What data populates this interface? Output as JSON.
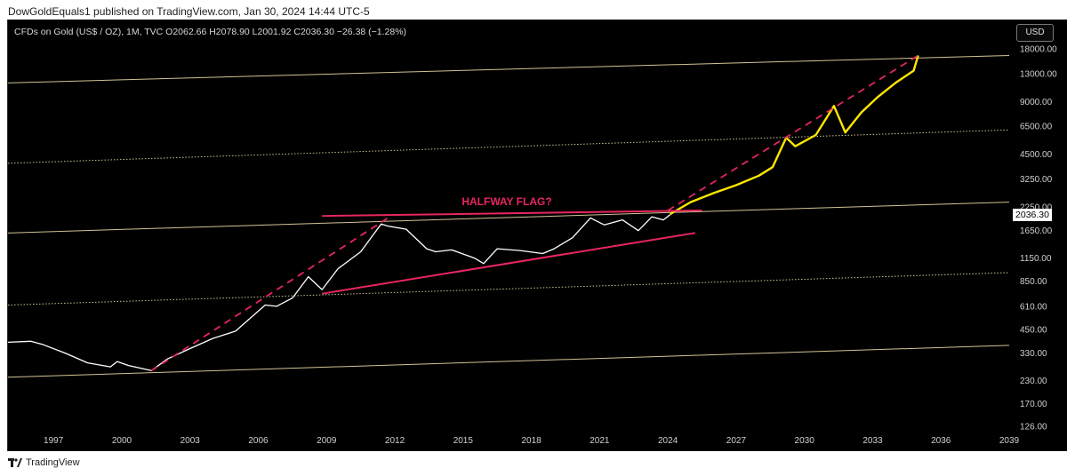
{
  "header": {
    "text": "DowGoldEquals1 published on TradingView.com, Jan 30, 2024 14:44 UTC-5"
  },
  "legend": {
    "text": "CFDs on Gold (US$ / OZ), 1M, TVC  O2062.66  H2078.90  L2001.92  C2036.30  −26.38 (−1.28%)"
  },
  "currency_button": "USD",
  "last_price_badge": "2036.30",
  "annotation": "HALFWAY FLAG?",
  "footer": {
    "logo_text": "TradingView"
  },
  "colors": {
    "background": "#000000",
    "price_line": "#ffffff",
    "projection": "#ffe600",
    "trendline": "#e8265f",
    "channel": "#f5e6b0",
    "axis_text": "#d0d0d0"
  },
  "chart_data": {
    "type": "line",
    "title": "CFDs on Gold (US$ / OZ), 1M, TVC",
    "y_scale": "log",
    "x_ticks": [
      "1997",
      "2000",
      "2003",
      "2006",
      "2009",
      "2012",
      "2015",
      "2018",
      "2021",
      "2024",
      "2027",
      "2030",
      "2033",
      "2036",
      "2039"
    ],
    "y_ticks": [
      "18000.00",
      "13000.00",
      "9000.00",
      "6500.00",
      "4500.00",
      "3250.00",
      "2250.00",
      "1650.00",
      "1150.00",
      "850.00",
      "610.00",
      "450.00",
      "330.00",
      "230.00",
      "170.00",
      "126.00"
    ],
    "xlim": [
      1995,
      2039
    ],
    "ylim": [
      120,
      22000
    ],
    "series": [
      {
        "style": "price",
        "x": [
          1995.0,
          1996.0,
          1996.5,
          1997.5,
          1998.5,
          1999.5,
          1999.8,
          2000.3,
          2001.3,
          2002.0,
          2003.0,
          2004.0,
          2005.0,
          2006.3,
          2006.8,
          2007.5,
          2008.2,
          2008.8,
          2009.5,
          2010.5,
          2011.4,
          2011.7,
          2012.5,
          2013.4,
          2013.8,
          2014.5,
          2015.5,
          2015.9,
          2016.5,
          2017.5,
          2018.5,
          2019.0,
          2019.8,
          2020.6,
          2021.2,
          2022.0,
          2022.7,
          2023.3,
          2023.8,
          2024.1
        ],
        "y": [
          380,
          385,
          370,
          330,
          290,
          275,
          295,
          280,
          262,
          305,
          350,
          400,
          440,
          620,
          610,
          680,
          900,
          760,
          1000,
          1250,
          1800,
          1750,
          1680,
          1300,
          1250,
          1280,
          1150,
          1070,
          1300,
          1270,
          1220,
          1300,
          1500,
          1950,
          1780,
          1900,
          1650,
          1980,
          1900,
          2036
        ]
      },
      {
        "style": "projection",
        "x": [
          2024.1,
          2025.0,
          2026.0,
          2027.0,
          2028.0,
          2028.6,
          2029.2,
          2029.6,
          2030.5,
          2031.3,
          2031.8,
          2032.5,
          2033.2,
          2034.0,
          2034.8,
          2035.0
        ],
        "y": [
          2050,
          2400,
          2700,
          3000,
          3400,
          3800,
          5600,
          5000,
          5800,
          8500,
          6000,
          7800,
          9500,
          11500,
          13500,
          16500
        ]
      },
      {
        "style": "trendline",
        "x": [
          2008.8,
          2025.2
        ],
        "y": [
          720,
          1600
        ]
      },
      {
        "style": "trendline",
        "x": [
          2008.8,
          2025.5
        ],
        "y": [
          2000,
          2150
        ]
      },
      {
        "style": "trendline-dashed",
        "x": [
          2001.3,
          2011.7
        ],
        "y": [
          262,
          1950
        ]
      },
      {
        "style": "trendline-dashed",
        "x": [
          2024.0,
          2035.0
        ],
        "y": [
          2150,
          16500
        ]
      }
    ],
    "channel_lines": [
      {
        "style": "solid",
        "x": [
          1995,
          2039
        ],
        "y": [
          11500,
          16500
        ]
      },
      {
        "style": "dotted",
        "x": [
          1995,
          2039
        ],
        "y": [
          4000,
          6200
        ]
      },
      {
        "style": "solid",
        "x": [
          1995,
          2039
        ],
        "y": [
          1600,
          2400
        ]
      },
      {
        "style": "dotted",
        "x": [
          1995,
          2039
        ],
        "y": [
          620,
          950
        ]
      },
      {
        "style": "solid",
        "x": [
          1995,
          2039
        ],
        "y": [
          240,
          365
        ]
      }
    ]
  }
}
